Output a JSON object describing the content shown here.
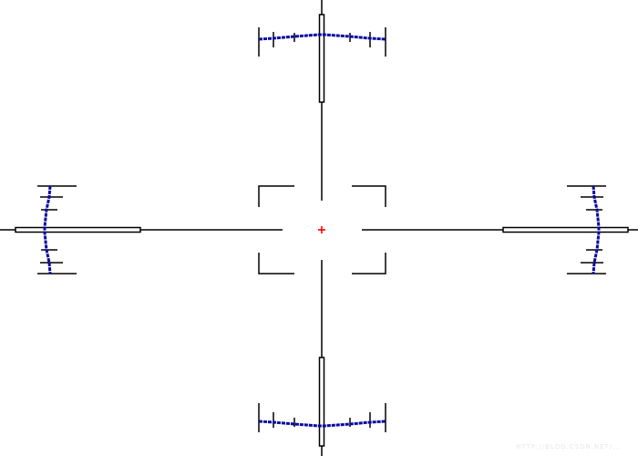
{
  "reticle": {
    "line_color": "#000000",
    "scale_color": "#0a0aa0",
    "center_dot_color": "#ff0000"
  },
  "watermark": {
    "text": "HTTP://BLOG.CSDN.NET/..."
  }
}
